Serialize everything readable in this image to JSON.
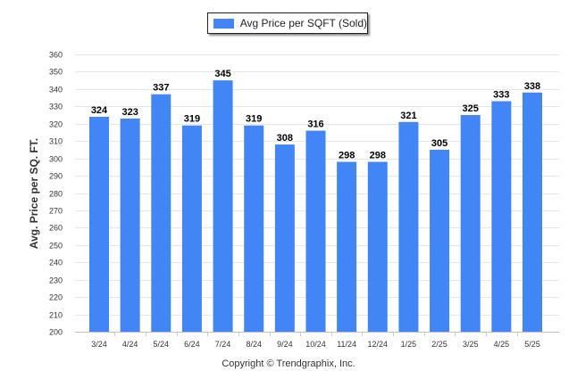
{
  "legend": {
    "label": "Avg Price per SQFT (Sold)",
    "color": "#4285f4"
  },
  "footer": {
    "copyright": "Copyright © Trendgraphix, Inc."
  },
  "chart_data": {
    "type": "bar",
    "title": "",
    "xlabel": "",
    "ylabel": "Avg. Price per SQ. FT.",
    "categories": [
      "3/24",
      "4/24",
      "5/24",
      "6/24",
      "7/24",
      "8/24",
      "9/24",
      "10/24",
      "11/24",
      "12/24",
      "1/25",
      "2/25",
      "3/25",
      "4/25",
      "5/25"
    ],
    "series": [
      {
        "name": "Avg Price per SQFT (Sold)",
        "values": [
          324,
          323,
          337,
          319,
          345,
          319,
          308,
          316,
          298,
          298,
          321,
          305,
          325,
          333,
          338
        ]
      }
    ],
    "ylim": [
      200,
      360
    ],
    "yticks": [
      200,
      210,
      220,
      230,
      240,
      250,
      260,
      270,
      280,
      290,
      300,
      310,
      320,
      330,
      340,
      350,
      360
    ],
    "grid": true,
    "legend_position": "top-center",
    "bar_color": "#4285f4"
  }
}
